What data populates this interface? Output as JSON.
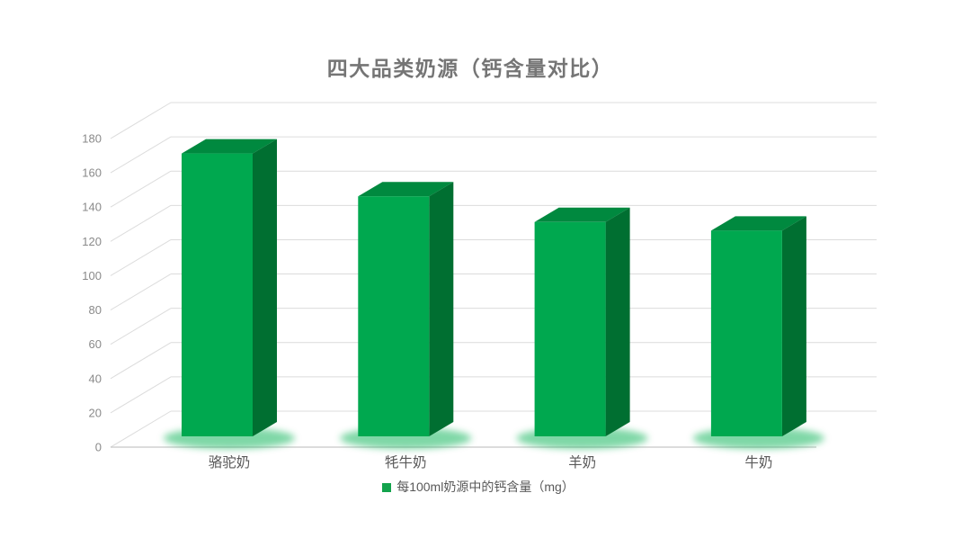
{
  "chart_data": {
    "type": "bar",
    "style": "3d-column",
    "title": "四大品类奶源（钙含量对比）",
    "categories": [
      "骆驼奶",
      "牦牛奶",
      "羊奶",
      "牛奶"
    ],
    "values": [
      165,
      140,
      125,
      120
    ],
    "series": [
      {
        "name": "每100ml奶源中的钙含量（mg）",
        "values": [
          165,
          140,
          125,
          120
        ]
      }
    ],
    "legend": "每100ml奶源中的钙含量（mg）",
    "legend_position": "bottom",
    "xlabel": "",
    "ylabel": "",
    "ylim": [
      0,
      180
    ],
    "ytick_step": 20,
    "yticks": [
      "0",
      "20",
      "40",
      "60",
      "80",
      "100",
      "120",
      "140",
      "160",
      "180"
    ],
    "grid": true,
    "colors": {
      "bar_front": "#00a84f",
      "bar_top": "#00893f",
      "bar_side": "#006f31",
      "glow": "#00b050",
      "grid": "#dcdcdc",
      "axis_line": "#c8c8c8",
      "title_text": "#757575",
      "tick_text": "#8a8a8a",
      "category_text": "#595959",
      "legend_text": "#595959",
      "legend_marker": "#13a34c"
    }
  }
}
